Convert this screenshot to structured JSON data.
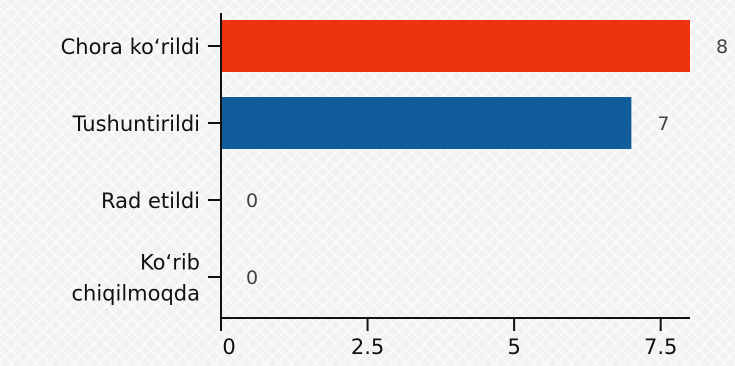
{
  "chart_data": {
    "type": "bar",
    "orientation": "horizontal",
    "categories": [
      "Chora ko‘rildi",
      "Tushuntirildi",
      "Rad etildi",
      "Ko‘rib chiqilmoqda"
    ],
    "category_lines": [
      [
        "Chora ko‘rildi"
      ],
      [
        "Tushuntirildi"
      ],
      [
        "Rad etildi"
      ],
      [
        "Ko‘rib",
        "chiqilmoqda"
      ]
    ],
    "values": [
      8,
      7,
      0,
      0
    ],
    "value_labels": [
      "8",
      "7",
      "0",
      "0"
    ],
    "bar_colors": [
      "#ee3311",
      "#135c9b",
      "#135c9b",
      "#135c9b"
    ],
    "xlim": [
      0,
      8
    ],
    "x_ticks": [
      0,
      2.5,
      5,
      7.5
    ],
    "x_tick_labels": [
      "0",
      "2.5",
      "5",
      "7.5"
    ],
    "title": "",
    "xlabel": "",
    "ylabel": "",
    "grid": false,
    "legend": "none"
  }
}
